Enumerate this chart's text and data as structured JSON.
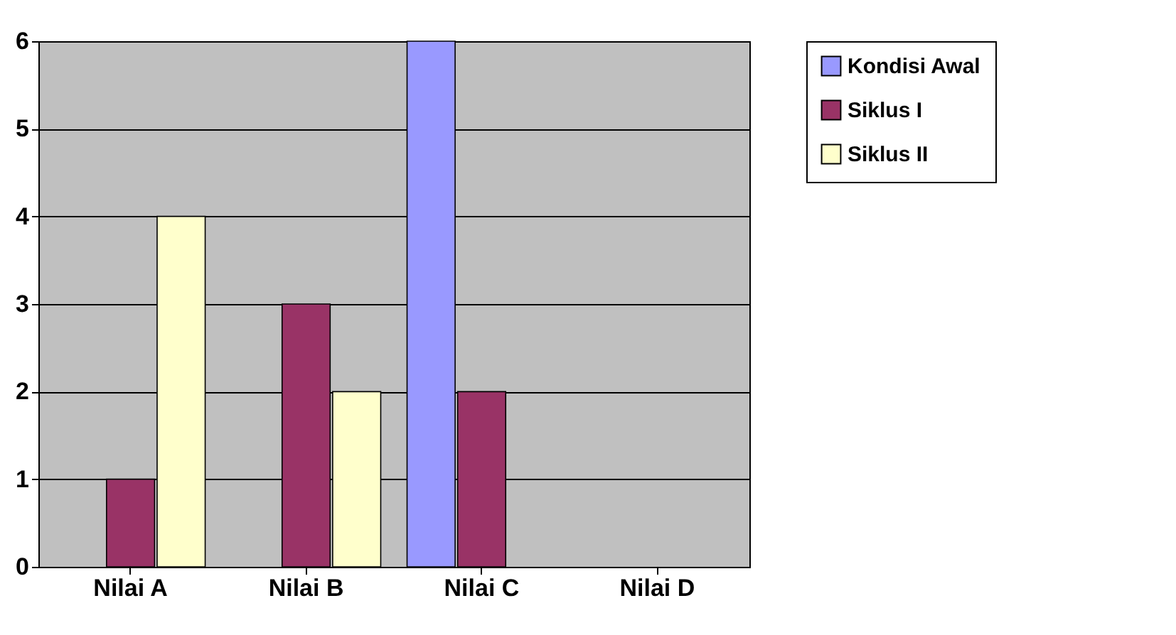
{
  "chart_data": {
    "type": "bar",
    "categories": [
      "Nilai A",
      "Nilai B",
      "Nilai C",
      "Nilai D"
    ],
    "series": [
      {
        "name": "Kondisi Awal",
        "color": "#9999ff",
        "values": [
          0,
          0,
          6,
          0
        ]
      },
      {
        "name": "Siklus I",
        "color": "#993366",
        "values": [
          1,
          3,
          2,
          0
        ]
      },
      {
        "name": "Siklus II",
        "color": "#ffffcc",
        "values": [
          4,
          2,
          0,
          0
        ]
      }
    ],
    "ylim": [
      0,
      6
    ],
    "yticks": [
      0,
      1,
      2,
      3,
      4,
      5,
      6
    ],
    "grid": "y",
    "legend": "right"
  }
}
